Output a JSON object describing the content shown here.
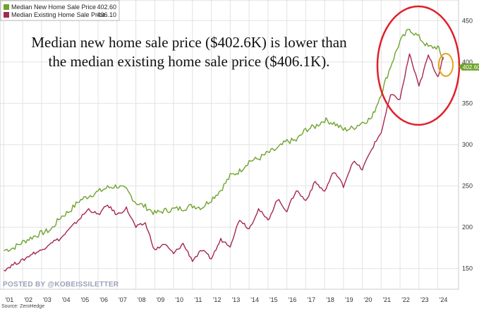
{
  "chart_data": {
    "type": "line",
    "legend": [
      {
        "name": "Median New Home Sale Price",
        "value": "402.60",
        "color": "#6fa32d"
      },
      {
        "name": "Median Existing Home Sale Price",
        "value": "406.10",
        "color": "#a4284d"
      }
    ],
    "annotation_line1": "Median new home sale price ($402.6K) is lower than",
    "annotation_line2": "the median existing home sale price ($406.1K).",
    "y_ticks": [
      "150",
      "200",
      "250",
      "300",
      "350",
      "400",
      "450"
    ],
    "x_ticks": [
      "'01",
      "'02",
      "'03",
      "'04",
      "'05",
      "'06",
      "'07",
      "'08",
      "'09",
      "'10",
      "'11",
      "'12",
      "'13",
      "'14",
      "'15",
      "'16",
      "'17",
      "'18",
      "'19",
      "'20",
      "'21",
      "'22",
      "'23",
      "'24"
    ],
    "ylim": [
      125,
      475
    ],
    "xlim": [
      2000.8,
      2025.1
    ],
    "last_value_tag": "402.60",
    "watermark": "POSTED BY @KOBEISSILETTER",
    "source": "Source: ZeroHedge",
    "grid": true,
    "series": [
      {
        "name": "Median New Home Sale Price",
        "color": "#6fa32d",
        "points": [
          [
            2001.0,
            172
          ],
          [
            2001.5,
            175
          ],
          [
            2002.0,
            182
          ],
          [
            2002.5,
            188
          ],
          [
            2003.0,
            193
          ],
          [
            2003.5,
            197
          ],
          [
            2004.0,
            212
          ],
          [
            2004.5,
            220
          ],
          [
            2005.0,
            232
          ],
          [
            2005.5,
            238
          ],
          [
            2006.0,
            243
          ],
          [
            2006.5,
            248
          ],
          [
            2007.0,
            250
          ],
          [
            2007.5,
            245
          ],
          [
            2008.0,
            230
          ],
          [
            2008.5,
            225
          ],
          [
            2009.0,
            217
          ],
          [
            2009.5,
            220
          ],
          [
            2010.0,
            222
          ],
          [
            2010.5,
            223
          ],
          [
            2011.0,
            226
          ],
          [
            2011.5,
            224
          ],
          [
            2012.0,
            234
          ],
          [
            2012.5,
            245
          ],
          [
            2013.0,
            262
          ],
          [
            2013.5,
            268
          ],
          [
            2014.0,
            280
          ],
          [
            2014.5,
            283
          ],
          [
            2015.0,
            290
          ],
          [
            2015.5,
            295
          ],
          [
            2016.0,
            304
          ],
          [
            2016.5,
            305
          ],
          [
            2017.0,
            318
          ],
          [
            2017.5,
            322
          ],
          [
            2018.0,
            330
          ],
          [
            2018.5,
            326
          ],
          [
            2019.0,
            318
          ],
          [
            2019.5,
            320
          ],
          [
            2020.0,
            327
          ],
          [
            2020.5,
            332
          ],
          [
            2021.0,
            362
          ],
          [
            2021.5,
            395
          ],
          [
            2022.0,
            425
          ],
          [
            2022.5,
            440
          ],
          [
            2023.0,
            430
          ],
          [
            2023.5,
            418
          ],
          [
            2024.0,
            418
          ],
          [
            2024.3,
            402.6
          ]
        ]
      },
      {
        "name": "Median Existing Home Sale Price",
        "color": "#a4284d",
        "points": [
          [
            2001.0,
            148
          ],
          [
            2001.5,
            155
          ],
          [
            2002.0,
            160
          ],
          [
            2002.5,
            168
          ],
          [
            2003.0,
            172
          ],
          [
            2003.5,
            182
          ],
          [
            2004.0,
            186
          ],
          [
            2004.5,
            198
          ],
          [
            2005.0,
            210
          ],
          [
            2005.5,
            222
          ],
          [
            2006.0,
            215
          ],
          [
            2006.5,
            227
          ],
          [
            2007.0,
            215
          ],
          [
            2007.5,
            223
          ],
          [
            2008.0,
            200
          ],
          [
            2008.5,
            205
          ],
          [
            2009.0,
            172
          ],
          [
            2009.5,
            180
          ],
          [
            2010.0,
            168
          ],
          [
            2010.5,
            180
          ],
          [
            2011.0,
            160
          ],
          [
            2011.5,
            172
          ],
          [
            2012.0,
            162
          ],
          [
            2012.5,
            185
          ],
          [
            2013.0,
            178
          ],
          [
            2013.5,
            210
          ],
          [
            2014.0,
            198
          ],
          [
            2014.5,
            222
          ],
          [
            2015.0,
            208
          ],
          [
            2015.5,
            234
          ],
          [
            2016.0,
            220
          ],
          [
            2016.5,
            245
          ],
          [
            2017.0,
            232
          ],
          [
            2017.5,
            255
          ],
          [
            2018.0,
            243
          ],
          [
            2018.5,
            268
          ],
          [
            2019.0,
            250
          ],
          [
            2019.5,
            280
          ],
          [
            2020.0,
            270
          ],
          [
            2020.5,
            295
          ],
          [
            2021.0,
            315
          ],
          [
            2021.5,
            360
          ],
          [
            2022.0,
            355
          ],
          [
            2022.5,
            410
          ],
          [
            2023.0,
            370
          ],
          [
            2023.5,
            408
          ],
          [
            2024.0,
            382
          ],
          [
            2024.3,
            406.1
          ]
        ]
      }
    ]
  }
}
